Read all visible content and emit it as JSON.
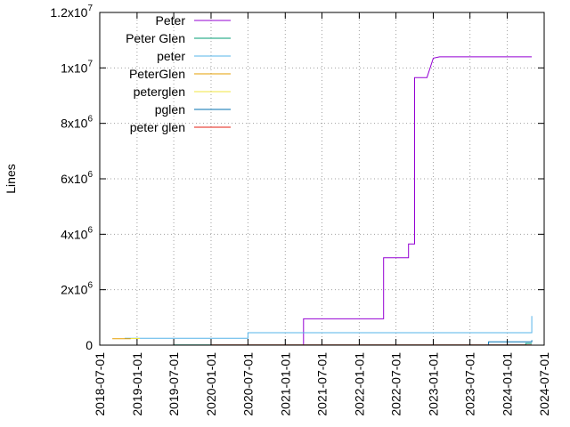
{
  "chart_data": {
    "type": "line",
    "title": "",
    "xlabel": "",
    "ylabel": "Lines",
    "x_type": "date",
    "xlim": [
      "2018-07-01",
      "2024-07-01"
    ],
    "ylim": [
      0,
      12000000
    ],
    "x_ticks": [
      "2018-07-01",
      "2019-01-01",
      "2019-07-01",
      "2020-01-01",
      "2020-07-01",
      "2021-01-01",
      "2021-07-01",
      "2022-01-01",
      "2022-07-01",
      "2023-01-01",
      "2023-07-01",
      "2024-01-01",
      "2024-07-01"
    ],
    "y_ticks": [
      {
        "value": 0,
        "base": "0",
        "exp": ""
      },
      {
        "value": 2000000,
        "base": "2x10",
        "exp": "6"
      },
      {
        "value": 4000000,
        "base": "4x10",
        "exp": "6"
      },
      {
        "value": 6000000,
        "base": "6x10",
        "exp": "6"
      },
      {
        "value": 8000000,
        "base": "8x10",
        "exp": "6"
      },
      {
        "value": 10000000,
        "base": "1x10",
        "exp": "7"
      },
      {
        "value": 12000000,
        "base": "1.2x10",
        "exp": "7"
      }
    ],
    "grid": true,
    "legend_position": "top-left",
    "series": [
      {
        "name": "Peter",
        "color": "#9400d3",
        "step": true,
        "points": [
          [
            "2021-04-01",
            0
          ],
          [
            "2021-04-01",
            950000
          ],
          [
            "2022-05-01",
            950000
          ],
          [
            "2022-05-01",
            3150000
          ],
          [
            "2022-09-01",
            3150000
          ],
          [
            "2022-09-01",
            3650000
          ],
          [
            "2022-10-01",
            3650000
          ],
          [
            "2022-10-01",
            9650000
          ],
          [
            "2022-12-01",
            9650000
          ],
          [
            "2023-01-01",
            10350000
          ],
          [
            "2023-02-01",
            10400000
          ],
          [
            "2024-05-01",
            10400000
          ]
        ]
      },
      {
        "name": "Peter Glen",
        "color": "#009e73",
        "step": true,
        "points": [
          [
            "2019-07-01",
            10000
          ],
          [
            "2024-04-01",
            10000
          ],
          [
            "2024-04-01",
            60000
          ],
          [
            "2024-05-01",
            60000
          ]
        ]
      },
      {
        "name": "peter",
        "color": "#56b4e9",
        "step": true,
        "points": [
          [
            "2018-11-01",
            250000
          ],
          [
            "2020-07-01",
            250000
          ],
          [
            "2020-07-01",
            450000
          ],
          [
            "2024-05-01",
            450000
          ],
          [
            "2024-05-01",
            1050000
          ]
        ]
      },
      {
        "name": "PeterGlen",
        "color": "#e69f00",
        "step": true,
        "points": [
          [
            "2018-09-01",
            230000
          ],
          [
            "2018-12-01",
            230000
          ]
        ]
      },
      {
        "name": "peterglen",
        "color": "#f0e442",
        "step": true,
        "points": [
          [
            "2018-12-01",
            240000
          ],
          [
            "2019-01-15",
            240000
          ]
        ]
      },
      {
        "name": "pglen",
        "color": "#0072b2",
        "step": true,
        "points": [
          [
            "2019-07-01",
            0
          ],
          [
            "2023-10-01",
            0
          ],
          [
            "2023-10-01",
            120000
          ],
          [
            "2024-05-01",
            120000
          ],
          [
            "2024-05-01",
            180000
          ]
        ]
      },
      {
        "name": "peter glen",
        "color": "#e51e10",
        "step": true,
        "points": [
          [
            "2020-01-01",
            5000
          ],
          [
            "2024-05-01",
            5000
          ]
        ]
      }
    ]
  }
}
